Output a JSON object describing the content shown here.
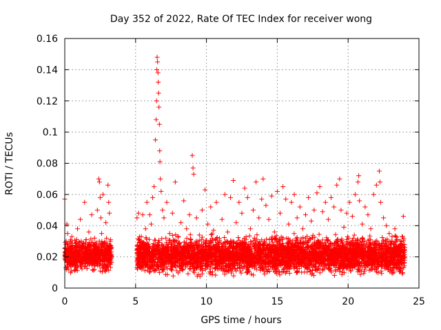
{
  "chart_data": {
    "type": "scatter",
    "title": "Day 352 of 2022, Rate Of TEC Index for receiver wong",
    "xlabel": "GPS time / hours",
    "ylabel": "ROTI / TECUs",
    "xlim": [
      0,
      25
    ],
    "ylim": [
      0,
      0.16
    ],
    "xticks": [
      0,
      5,
      10,
      15,
      20,
      25
    ],
    "xtick_labels": [
      "0",
      "5",
      "10",
      "15",
      "20",
      "25"
    ],
    "yticks": [
      0,
      0.02,
      0.04,
      0.06,
      0.08,
      0.1,
      0.12,
      0.14,
      0.16
    ],
    "ytick_labels": [
      "0",
      "0.02",
      "0.04",
      "0.06",
      "0.08",
      "0.1",
      "0.12",
      "0.14",
      "0.16"
    ],
    "grid": true,
    "marker": "+",
    "marker_color": "#ff0000",
    "series": [
      {
        "points": [
          [
            0.0,
            0.057
          ],
          [
            0.05,
            0.02
          ],
          [
            0.1,
            0.03
          ],
          [
            0.15,
            0.041
          ],
          [
            0.2,
            0.035
          ],
          [
            0.25,
            0.012
          ],
          [
            0.3,
            0.025
          ],
          [
            0.4,
            0.018
          ],
          [
            0.5,
            0.033
          ],
          [
            0.6,
            0.022
          ],
          [
            0.7,
            0.015
          ],
          [
            0.8,
            0.029
          ],
          [
            0.9,
            0.038
          ],
          [
            1.0,
            0.021
          ],
          [
            1.1,
            0.044
          ],
          [
            1.2,
            0.017
          ],
          [
            1.3,
            0.027
          ],
          [
            1.4,
            0.055
          ],
          [
            1.5,
            0.031
          ],
          [
            1.6,
            0.019
          ],
          [
            1.7,
            0.036
          ],
          [
            1.8,
            0.024
          ],
          [
            1.9,
            0.047
          ],
          [
            2.0,
            0.016
          ],
          [
            2.1,
            0.032
          ],
          [
            2.2,
            0.028
          ],
          [
            2.3,
            0.05
          ],
          [
            2.4,
            0.07
          ],
          [
            2.45,
            0.068
          ],
          [
            2.5,
            0.058
          ],
          [
            2.55,
            0.045
          ],
          [
            2.6,
            0.035
          ],
          [
            2.7,
            0.06
          ],
          [
            2.8,
            0.025
          ],
          [
            2.9,
            0.042
          ],
          [
            3.0,
            0.018
          ],
          [
            3.05,
            0.066
          ],
          [
            3.1,
            0.055
          ],
          [
            3.15,
            0.048
          ],
          [
            3.2,
            0.03
          ],
          [
            3.25,
            0.021
          ],
          [
            5.1,
            0.045
          ],
          [
            5.2,
            0.048
          ],
          [
            5.3,
            0.025
          ],
          [
            5.4,
            0.033
          ],
          [
            5.5,
            0.047
          ],
          [
            5.6,
            0.02
          ],
          [
            5.7,
            0.038
          ],
          [
            5.8,
            0.055
          ],
          [
            5.9,
            0.028
          ],
          [
            6.0,
            0.047
          ],
          [
            6.1,
            0.041
          ],
          [
            6.2,
            0.058
          ],
          [
            6.3,
            0.065
          ],
          [
            6.4,
            0.095
          ],
          [
            6.45,
            0.108
          ],
          [
            6.48,
            0.12
          ],
          [
            6.5,
            0.14
          ],
          [
            6.52,
            0.148
          ],
          [
            6.55,
            0.145
          ],
          [
            6.58,
            0.138
          ],
          [
            6.6,
            0.132
          ],
          [
            6.62,
            0.125
          ],
          [
            6.65,
            0.116
          ],
          [
            6.68,
            0.105
          ],
          [
            6.7,
            0.088
          ],
          [
            6.72,
            0.081
          ],
          [
            6.75,
            0.07
          ],
          [
            6.8,
            0.062
          ],
          [
            6.9,
            0.05
          ],
          [
            7.0,
            0.045
          ],
          [
            7.2,
            0.055
          ],
          [
            7.4,
            0.035
          ],
          [
            7.6,
            0.048
          ],
          [
            7.8,
            0.068
          ],
          [
            8.0,
            0.029
          ],
          [
            8.2,
            0.042
          ],
          [
            8.4,
            0.056
          ],
          [
            8.6,
            0.038
          ],
          [
            8.8,
            0.047
          ],
          [
            9.0,
            0.085
          ],
          [
            9.05,
            0.077
          ],
          [
            9.1,
            0.073
          ],
          [
            9.3,
            0.045
          ],
          [
            9.5,
            0.034
          ],
          [
            9.7,
            0.05
          ],
          [
            9.9,
            0.063
          ],
          [
            10.1,
            0.041
          ],
          [
            10.3,
            0.052
          ],
          [
            10.5,
            0.037
          ],
          [
            10.7,
            0.055
          ],
          [
            10.9,
            0.029
          ],
          [
            11.1,
            0.044
          ],
          [
            11.3,
            0.06
          ],
          [
            11.5,
            0.036
          ],
          [
            11.7,
            0.058
          ],
          [
            11.9,
            0.069
          ],
          [
            12.1,
            0.042
          ],
          [
            12.3,
            0.055
          ],
          [
            12.5,
            0.048
          ],
          [
            12.7,
            0.064
          ],
          [
            12.9,
            0.058
          ],
          [
            13.1,
            0.038
          ],
          [
            13.3,
            0.05
          ],
          [
            13.5,
            0.068
          ],
          [
            13.7,
            0.045
          ],
          [
            13.9,
            0.057
          ],
          [
            14.0,
            0.07
          ],
          [
            14.1,
            0.009
          ],
          [
            14.2,
            0.053
          ],
          [
            14.4,
            0.044
          ],
          [
            14.6,
            0.059
          ],
          [
            14.8,
            0.036
          ],
          [
            15.0,
            0.062
          ],
          [
            15.2,
            0.048
          ],
          [
            15.4,
            0.065
          ],
          [
            15.6,
            0.057
          ],
          [
            15.8,
            0.041
          ],
          [
            16.0,
            0.055
          ],
          [
            16.2,
            0.06
          ],
          [
            16.4,
            0.045
          ],
          [
            16.6,
            0.052
          ],
          [
            16.8,
            0.038
          ],
          [
            17.0,
            0.047
          ],
          [
            17.2,
            0.058
          ],
          [
            17.4,
            0.043
          ],
          [
            17.6,
            0.05
          ],
          [
            17.8,
            0.061
          ],
          [
            18.0,
            0.065
          ],
          [
            18.2,
            0.049
          ],
          [
            18.4,
            0.055
          ],
          [
            18.6,
            0.044
          ],
          [
            18.8,
            0.058
          ],
          [
            19.0,
            0.052
          ],
          [
            19.2,
            0.066
          ],
          [
            19.4,
            0.07
          ],
          [
            19.5,
            0.05
          ],
          [
            19.7,
            0.039
          ],
          [
            19.9,
            0.048
          ],
          [
            20.1,
            0.055
          ],
          [
            20.3,
            0.046
          ],
          [
            20.5,
            0.06
          ],
          [
            20.7,
            0.068
          ],
          [
            20.75,
            0.072
          ],
          [
            20.8,
            0.056
          ],
          [
            21.0,
            0.041
          ],
          [
            21.2,
            0.052
          ],
          [
            21.4,
            0.047
          ],
          [
            21.6,
            0.038
          ],
          [
            21.8,
            0.06
          ],
          [
            22.0,
            0.066
          ],
          [
            22.2,
            0.075
          ],
          [
            22.25,
            0.068
          ],
          [
            22.3,
            0.055
          ],
          [
            22.5,
            0.045
          ],
          [
            22.7,
            0.04
          ],
          [
            22.9,
            0.035
          ],
          [
            23.1,
            0.033
          ],
          [
            23.3,
            0.038
          ],
          [
            23.5,
            0.031
          ],
          [
            23.7,
            0.028
          ],
          [
            23.9,
            0.046
          ],
          [
            24.0,
            0.026
          ]
        ],
        "band": {
          "segments": [
            {
              "x_start": 0.0,
              "x_end": 3.3,
              "y_min": 0.008,
              "y_max": 0.034
            },
            {
              "x_start": 5.1,
              "x_end": 24.0,
              "y_min": 0.006,
              "y_max": 0.036
            }
          ],
          "approx_points_per_hour": 220
        }
      }
    ]
  }
}
